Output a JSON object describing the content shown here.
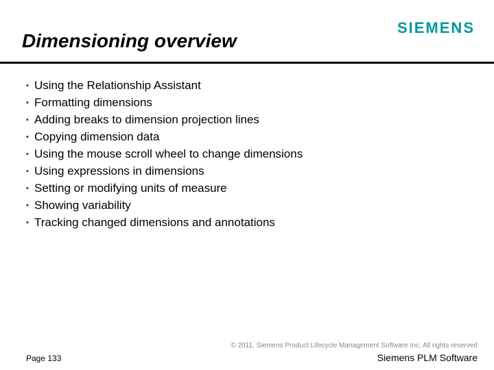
{
  "header": {
    "title": "Dimensioning overview",
    "logo": "SIEMENS"
  },
  "bullets": [
    "Using the Relationship Assistant",
    "Formatting dimensions",
    "Adding breaks to dimension projection lines",
    "Copying dimension data",
    "Using the mouse scroll wheel to change dimensions",
    "Using expressions in dimensions",
    "Setting or modifying units of measure",
    "Showing variability",
    "Tracking changed dimensions and annotations"
  ],
  "footer": {
    "copyright": "© 2011. Siemens Product Lifecycle Management Software Inc. All rights reserved",
    "page": "Page 133",
    "brand": "Siemens PLM Software"
  },
  "style": {
    "background_color": "#ffffff",
    "title_color": "#000000",
    "title_fontsize": 28,
    "title_italic": true,
    "logo_color": "#009999",
    "logo_fontsize": 22,
    "divider_color": "#000000",
    "divider_height": 3,
    "bullet_fontsize": 17,
    "bullet_color": "#000000",
    "bullet_marker": "square",
    "copyright_color": "#888888",
    "copyright_fontsize": 10,
    "page_fontsize": 12,
    "brand_fontsize": 14
  }
}
